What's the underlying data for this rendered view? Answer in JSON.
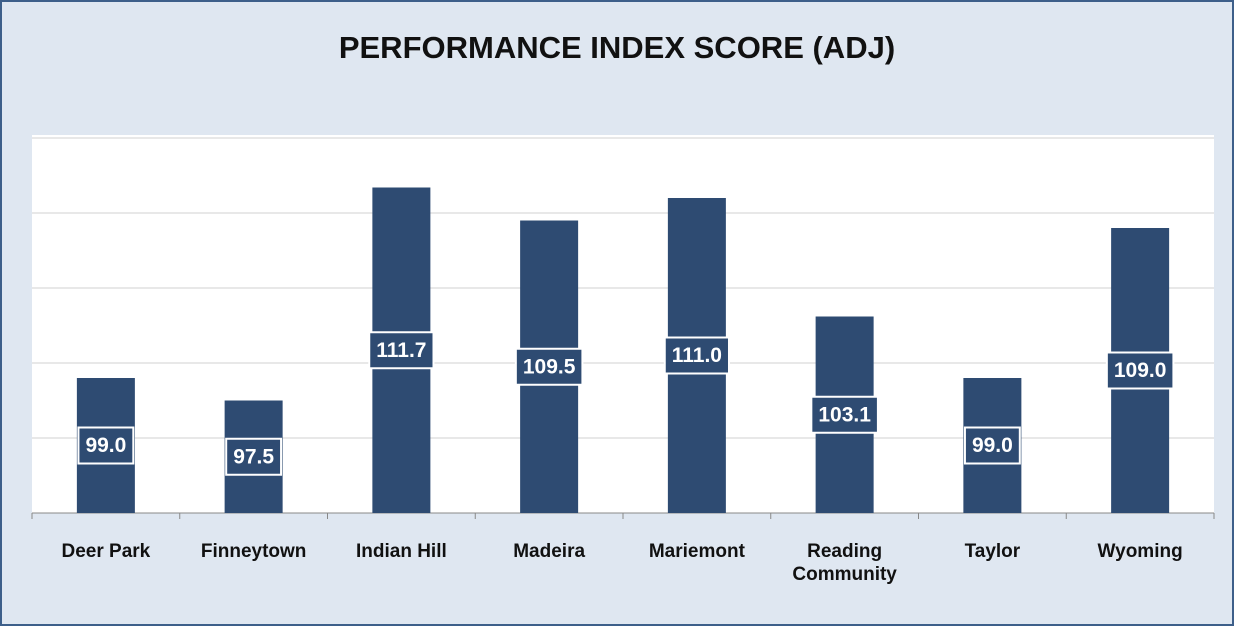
{
  "chart_data": {
    "type": "bar",
    "title": "PERFORMANCE INDEX SCORE (ADJ)",
    "categories": [
      "Deer Park",
      "Finneytown",
      "Indian Hill",
      "Madeira",
      "Mariemont",
      "Reading Community",
      "Taylor",
      "Wyoming"
    ],
    "values": [
      99.0,
      97.5,
      111.7,
      109.5,
      111.0,
      103.1,
      99.0,
      109.0
    ],
    "value_labels": [
      "99.0",
      "97.5",
      "111.7",
      "109.5",
      "111.0",
      "103.1",
      "99.0",
      "109.0"
    ],
    "color": "#2e4b72",
    "ylim": [
      90,
      115
    ],
    "yticks": [
      90,
      95,
      100,
      105,
      110,
      115
    ],
    "grid": true
  }
}
